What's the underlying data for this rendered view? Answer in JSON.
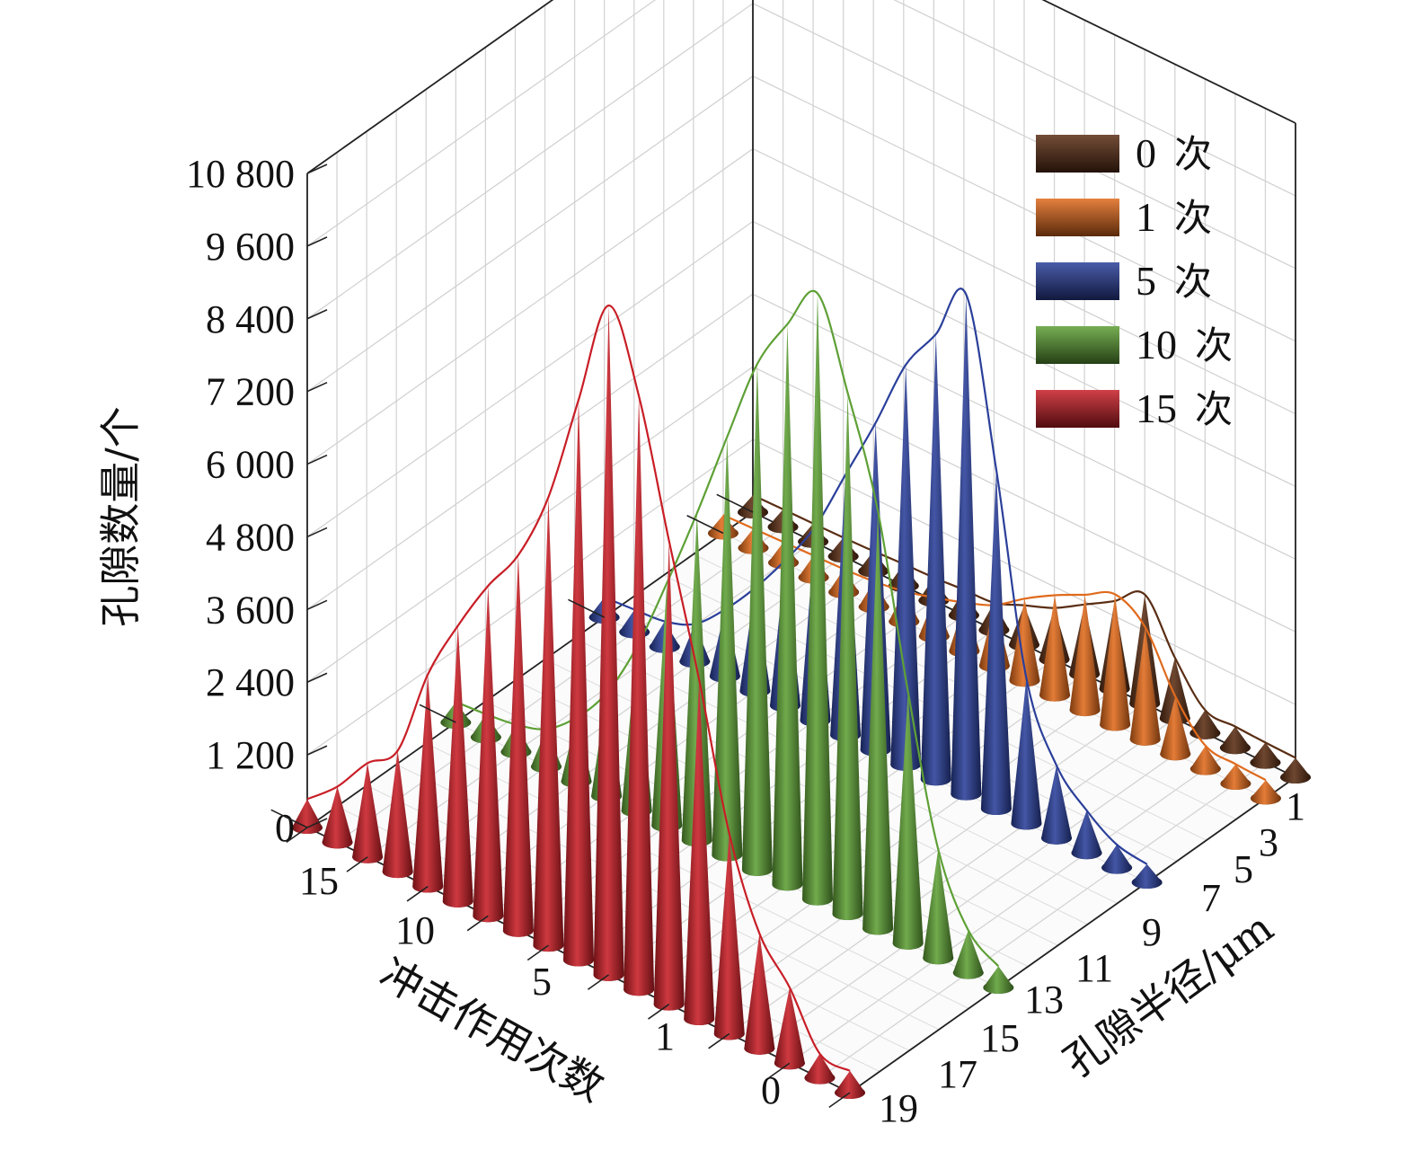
{
  "chart_data": {
    "type": "bar",
    "subtype": "3d-cone",
    "title": "",
    "z_axis": {
      "label": "孔隙数量/个",
      "range": [
        0,
        10800
      ],
      "ticks": [
        "0",
        "1 200",
        "2 400",
        "3 600",
        "4 800",
        "6 000",
        "7 200",
        "8 400",
        "9 600",
        "10 800"
      ]
    },
    "y_axis": {
      "label": "冲击作用次数",
      "ticks": [
        "15",
        "10",
        "5",
        "1",
        "0"
      ]
    },
    "x_axis": {
      "label": "孔隙半径/μm",
      "ticks": [
        "1",
        "3",
        "5",
        "7",
        "9",
        "11",
        "13",
        "15",
        "17",
        "19"
      ]
    },
    "legend": {
      "position": "top-right",
      "entries": [
        {
          "number": "0",
          "unit": "次",
          "color": "#5a2e14"
        },
        {
          "number": "1",
          "unit": "次",
          "color": "#e06a1c"
        },
        {
          "number": "5",
          "unit": "次",
          "color": "#2a3f9a"
        },
        {
          "number": "10",
          "unit": "次",
          "color": "#5ea035"
        },
        {
          "number": "15",
          "unit": "次",
          "color": "#c81e26"
        }
      ]
    },
    "grid": true,
    "series": [
      {
        "row": "0",
        "color": "#5a2e14",
        "values": [
          320,
          330,
          350,
          380,
          1000,
          1800,
          1450,
          1150,
          850,
          650,
          450,
          420,
          380,
          360,
          330,
          310,
          300,
          290,
          280
        ]
      },
      {
        "row": "1",
        "color": "#e06a1c",
        "values": [
          300,
          320,
          380,
          950,
          1850,
          2150,
          1900,
          1650,
          1350,
          1000,
          800,
          640,
          500,
          420,
          380,
          360,
          340,
          320,
          300
        ]
      },
      {
        "row": "5",
        "color": "#2a3f9a",
        "values": [
          300,
          380,
          700,
          1200,
          2400,
          5600,
          8250,
          7350,
          6600,
          5400,
          4300,
          3200,
          2400,
          1700,
          1100,
          620,
          420,
          370,
          330
        ]
      },
      {
        "row": "10",
        "color": "#5ea035",
        "values": [
          350,
          700,
          1800,
          4150,
          6900,
          8600,
          10000,
          9250,
          8350,
          6900,
          5400,
          4000,
          2700,
          1700,
          1050,
          620,
          450,
          380,
          340
        ]
      },
      {
        "row": "15",
        "color": "#c81e26",
        "values": [
          360,
          400,
          1250,
          1900,
          3300,
          5600,
          7650,
          9800,
          11050,
          9250,
          7400,
          6200,
          5450,
          4550,
          3500,
          2000,
          1550,
          920,
          470
        ]
      }
    ]
  }
}
